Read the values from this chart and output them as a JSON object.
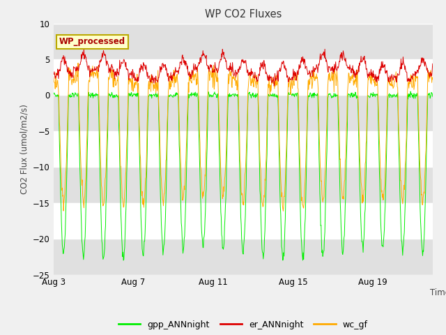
{
  "title": "WP CO2 Fluxes",
  "xlabel": "Time",
  "ylabel_raw": "CO2 Flux (umol/m2/s)",
  "ylim": [
    -25,
    10
  ],
  "yticks": [
    -25,
    -20,
    -15,
    -10,
    -5,
    0,
    5,
    10
  ],
  "xtick_labels": [
    "Aug 3",
    "Aug 7",
    "Aug 11",
    "Aug 15",
    "Aug 19"
  ],
  "xtick_positions": [
    0,
    4,
    8,
    12,
    16
  ],
  "xlim": [
    0,
    19
  ],
  "fig_bg_color": "#f0f0f0",
  "plot_bg_color": "#ffffff",
  "grid_color": "#cccccc",
  "band_color": "#e0e0e0",
  "color_gpp": "#00ee00",
  "color_er": "#dd0000",
  "color_wc": "#ffaa00",
  "legend_label_gpp": "gpp_ANNnight",
  "legend_label_er": "er_ANNnight",
  "legend_label_wc": "wc_gf",
  "inset_label": "WP_processed",
  "inset_label_color": "#aa0000",
  "inset_bg": "#ffffcc",
  "inset_border": "#bbaa00",
  "n_days": 19,
  "points_per_day": 48,
  "seed": 42
}
